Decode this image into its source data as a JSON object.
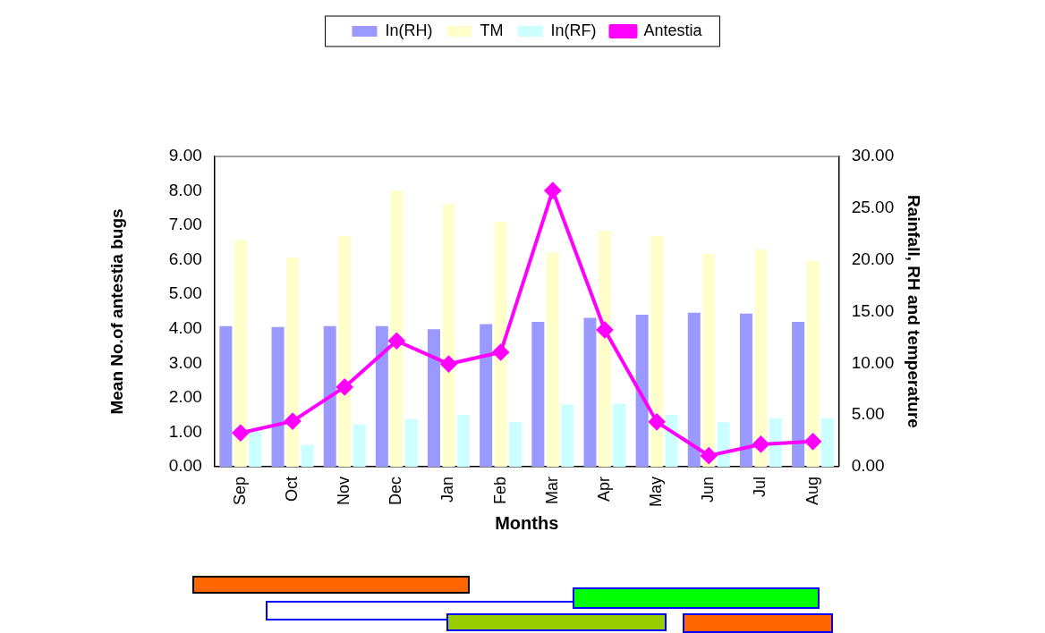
{
  "chart_data": {
    "type": "bar",
    "xlabel": "Months",
    "ylabel": "Mean No.of antestia bugs",
    "y2label": "Rainfall, RH and temperature",
    "categories": [
      "Sep",
      "Oct",
      "Nov",
      "Dec",
      "Jan",
      "Feb",
      "Mar",
      "Apr",
      "May",
      "Jun",
      "Jul",
      "Aug"
    ],
    "series": [
      {
        "name": "In(RH)",
        "color": "#9999ff",
        "axis": "y2",
        "values": [
          13.6,
          13.5,
          13.6,
          13.6,
          13.3,
          13.8,
          14.0,
          14.4,
          14.7,
          14.9,
          14.8,
          14.0
        ]
      },
      {
        "name": "TM",
        "color": "#ffffcc",
        "axis": "y2",
        "values": [
          21.9,
          20.2,
          22.3,
          26.7,
          25.4,
          23.7,
          20.7,
          22.8,
          22.3,
          20.6,
          21.0,
          19.9
        ]
      },
      {
        "name": "In(RF)",
        "color": "#ccffff",
        "axis": "y2",
        "values": [
          3.6,
          2.1,
          4.1,
          4.6,
          5.0,
          4.3,
          6.0,
          6.1,
          5.0,
          4.3,
          4.7,
          4.7
        ]
      },
      {
        "name": "Antestia",
        "type": "line",
        "color": "#ff00ff",
        "marker": "diamond",
        "values": [
          0.98,
          1.32,
          2.31,
          3.65,
          2.98,
          3.32,
          8.01,
          3.97,
          1.3,
          0.32,
          0.65,
          0.73
        ]
      }
    ],
    "ylim": [
      0,
      9
    ],
    "yticks": [
      {
        "value": 0,
        "label": "0.00"
      },
      {
        "value": 1,
        "label": "1.00"
      },
      {
        "value": 2,
        "label": "2.00"
      },
      {
        "value": 3,
        "label": "3.00"
      },
      {
        "value": 4,
        "label": "4.00"
      },
      {
        "value": 5,
        "label": "5.00"
      },
      {
        "value": 6,
        "label": "6.00"
      },
      {
        "value": 7,
        "label": "7.00"
      },
      {
        "value": 8,
        "label": "8.00"
      },
      {
        "value": 9,
        "label": "9.00"
      }
    ],
    "y2lim": [
      0,
      30
    ],
    "y2ticks": [
      {
        "value": 0,
        "label": "0.00"
      },
      {
        "value": 5,
        "label": "5.00"
      },
      {
        "value": 10,
        "label": "10.00"
      },
      {
        "value": 15,
        "label": "15.00"
      },
      {
        "value": 20,
        "label": "20.00"
      },
      {
        "value": 25,
        "label": "25.00"
      },
      {
        "value": 30,
        "label": "30.00"
      }
    ],
    "grid": false,
    "legend": "top"
  }
}
